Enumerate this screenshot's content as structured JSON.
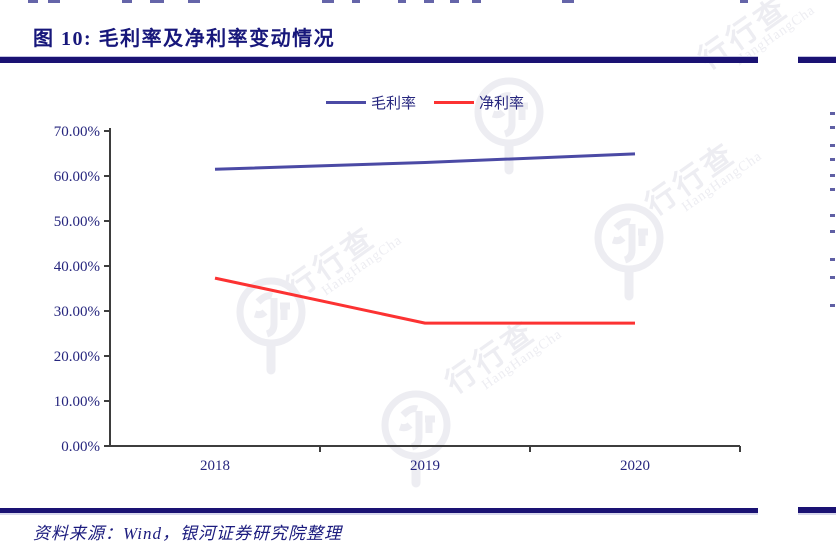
{
  "figure": {
    "title": "图 10:  毛利率及净利率变动情况",
    "source_note": "资料来源：Wind，银河证券研究院整理",
    "accent_navy": "#1a1273",
    "text_navy": "#26267e"
  },
  "legend": {
    "items": [
      {
        "label": "毛利率",
        "color": "#4b4aa5"
      },
      {
        "label": "净利率",
        "color": "#fc3232"
      }
    ]
  },
  "chart_data": {
    "type": "line",
    "title": "毛利率及净利率变动情况",
    "categories": [
      "2018",
      "2019",
      "2020"
    ],
    "series": [
      {
        "name": "毛利率",
        "values": [
          61.5,
          63.0,
          64.9
        ],
        "color": "#4b4aa5"
      },
      {
        "name": "净利率",
        "values": [
          37.3,
          27.3,
          27.3
        ],
        "color": "#fc3232"
      }
    ],
    "ylim": [
      0,
      70
    ],
    "y_ticks": [
      {
        "value": 70,
        "label": "70.00%"
      },
      {
        "value": 60,
        "label": "60.00%"
      },
      {
        "value": 50,
        "label": "50.00%"
      },
      {
        "value": 40,
        "label": "40.00%"
      },
      {
        "value": 30,
        "label": "30.00%"
      },
      {
        "value": 20,
        "label": "20.00%"
      },
      {
        "value": 10,
        "label": "10.00%"
      },
      {
        "value": 0,
        "label": "0.00%"
      }
    ],
    "grid": false,
    "legend_position": "top-center",
    "axis_color": "#3d3d3d"
  },
  "watermark": {
    "text": "行行查",
    "subtext": "HangHangCha",
    "color": "#ededf2"
  }
}
